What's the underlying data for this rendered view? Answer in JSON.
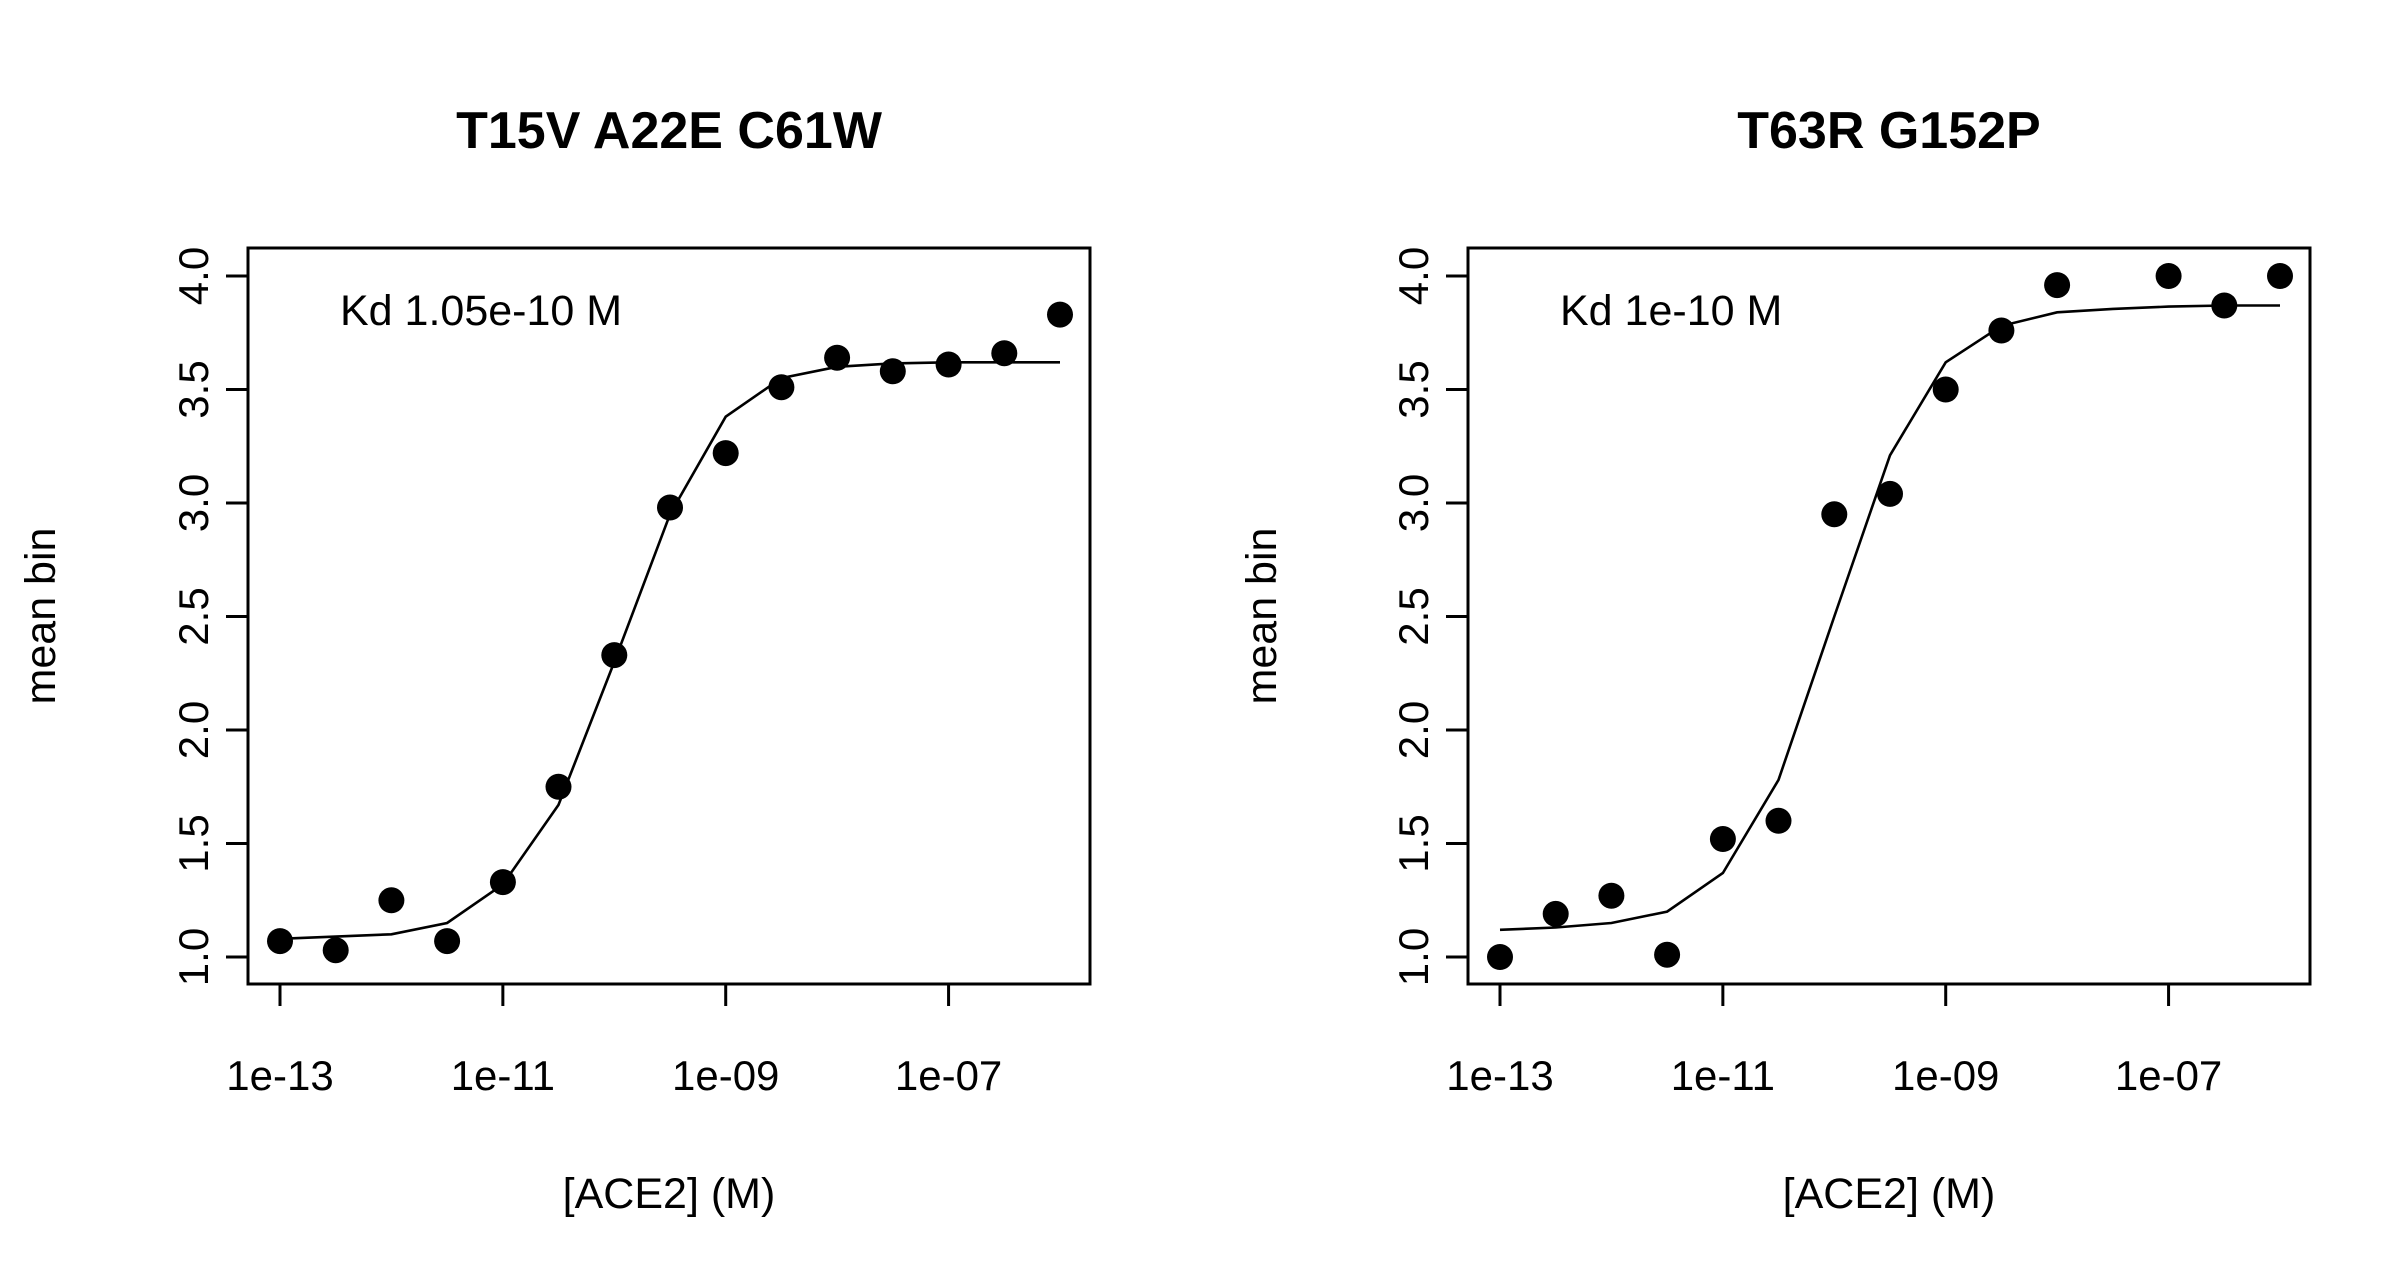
{
  "chart_data": [
    {
      "type": "scatter",
      "title": "T15V A22E C61W",
      "xlabel": "[ACE2] (M)",
      "ylabel": "mean bin",
      "x_scale": "log10",
      "xlim": [
        1e-13,
        1e-06
      ],
      "ylim": [
        0.9,
        4.12
      ],
      "x_ticks": [
        1e-13,
        1e-11,
        1e-09,
        1e-07
      ],
      "x_tick_labels": [
        "1e-13",
        "1e-11",
        "1e-09",
        "1e-07"
      ],
      "y_ticks": [
        1.0,
        1.5,
        2.0,
        2.5,
        3.0,
        3.5,
        4.0
      ],
      "y_tick_labels": [
        "1.0",
        "1.5",
        "2.0",
        "2.5",
        "3.0",
        "3.5",
        "4.0"
      ],
      "annotation": "Kd 1.05e-10 M",
      "x": [
        1e-13,
        3.16e-13,
        1e-12,
        3.16e-12,
        1e-11,
        3.16e-11,
        1e-10,
        3.16e-10,
        1e-09,
        3.16e-09,
        1e-08,
        3.16e-08,
        1e-07,
        3.16e-07,
        1e-06
      ],
      "y": [
        1.07,
        1.03,
        1.25,
        1.07,
        1.33,
        1.75,
        2.33,
        2.98,
        3.22,
        3.51,
        3.64,
        3.58,
        3.61,
        3.66,
        3.83
      ],
      "fit": {
        "x": [
          1e-13,
          3.16e-13,
          1e-12,
          3.16e-12,
          1e-11,
          3.16e-11,
          1e-10,
          3.16e-10,
          1e-09,
          3.16e-09,
          1e-08,
          3.16e-08,
          1e-07,
          3.16e-07,
          1e-06
        ],
        "y": [
          1.08,
          1.09,
          1.1,
          1.15,
          1.32,
          1.67,
          2.3,
          2.95,
          3.38,
          3.55,
          3.6,
          3.615,
          3.62,
          3.62,
          3.62
        ]
      }
    },
    {
      "type": "scatter",
      "title": "T63R G152P",
      "xlabel": "[ACE2] (M)",
      "ylabel": "mean bin",
      "x_scale": "log10",
      "xlim": [
        1e-13,
        1e-06
      ],
      "ylim": [
        0.9,
        4.12
      ],
      "x_ticks": [
        1e-13,
        1e-11,
        1e-09,
        1e-07
      ],
      "x_tick_labels": [
        "1e-13",
        "1e-11",
        "1e-09",
        "1e-07"
      ],
      "y_ticks": [
        1.0,
        1.5,
        2.0,
        2.5,
        3.0,
        3.5,
        4.0
      ],
      "y_tick_labels": [
        "1.0",
        "1.5",
        "2.0",
        "2.5",
        "3.0",
        "3.5",
        "4.0"
      ],
      "annotation": "Kd 1e-10 M",
      "x": [
        1e-13,
        3.16e-13,
        1e-12,
        3.16e-12,
        1e-11,
        3.16e-11,
        1e-10,
        3.16e-10,
        1e-09,
        3.16e-09,
        1e-08,
        1e-07,
        3.16e-07,
        1e-06
      ],
      "y": [
        1.0,
        1.19,
        1.27,
        1.01,
        1.52,
        1.6,
        2.95,
        3.04,
        3.5,
        3.76,
        3.96,
        4.0,
        3.87,
        4.0
      ],
      "fit": {
        "x": [
          1e-13,
          3.16e-13,
          1e-12,
          3.16e-12,
          1e-11,
          3.16e-11,
          1e-10,
          3.16e-10,
          1e-09,
          3.16e-09,
          1e-08,
          3.16e-08,
          1e-07,
          3.16e-07,
          1e-06
        ],
        "y": [
          1.12,
          1.13,
          1.15,
          1.2,
          1.37,
          1.78,
          2.5,
          3.21,
          3.62,
          3.78,
          3.84,
          3.855,
          3.865,
          3.87,
          3.87
        ]
      }
    }
  ]
}
